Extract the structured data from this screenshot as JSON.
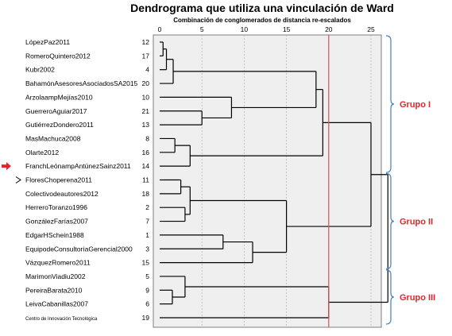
{
  "chart_data": {
    "type": "dendrogram",
    "title": "Dendrograma que utiliza una vinculación de Ward",
    "subtitle": "Combinación de conglomerados de distancia re-escalados",
    "xlim": [
      0,
      25
    ],
    "ticks": [
      0,
      5,
      10,
      15,
      20,
      25
    ],
    "cut_line": 20,
    "cut_line_color": "#e05050",
    "leaves": [
      {
        "label": "LópezPaz2011",
        "id": "12"
      },
      {
        "label": "RomeroQuintero2012",
        "id": "17"
      },
      {
        "label": "Kubr2002",
        "id": "4"
      },
      {
        "label": "BahamónAsesoresAsociadosSA2015",
        "id": "20"
      },
      {
        "label": "ArzolaampMejías2010",
        "id": "10"
      },
      {
        "label": "GuerreroAguiar2017",
        "id": "21"
      },
      {
        "label": "GutiérrezDondero2011",
        "id": "13"
      },
      {
        "label": "MasMachuca2008",
        "id": "8"
      },
      {
        "label": "Olarte2012",
        "id": "16"
      },
      {
        "label": "FranchLeónampAntúnezSainz2011",
        "id": "14"
      },
      {
        "label": "FloresChoperena2011",
        "id": "11"
      },
      {
        "label": "Colectivodeautores2012",
        "id": "18"
      },
      {
        "label": "HerreroToranzo1996",
        "id": "2"
      },
      {
        "label": "GonzálezFarías2007",
        "id": "7"
      },
      {
        "label": "EdgarHSchein1988",
        "id": "1"
      },
      {
        "label": "EquipodeConsultoríaGerencial2000",
        "id": "3"
      },
      {
        "label": "VázquezRomero2011",
        "id": "15"
      },
      {
        "label": "MarimonViadiu2002",
        "id": "5"
      },
      {
        "label": "PereiraBarata2010",
        "id": "9"
      },
      {
        "label": "LeivaCabanillas2007",
        "id": "6"
      },
      {
        "label": "Centro de Innovación Tecnológica",
        "id": "19",
        "small": true
      }
    ],
    "merges": [
      {
        "a": {
          "leaf": 0
        },
        "b": {
          "leaf": 1
        },
        "height": 0.4
      },
      {
        "a": {
          "node": 0
        },
        "b": {
          "leaf": 2
        },
        "height": 0.8
      },
      {
        "a": {
          "node": 1
        },
        "b": {
          "leaf": 3
        },
        "height": 1.6
      },
      {
        "a": {
          "leaf": 5
        },
        "b": {
          "leaf": 6
        },
        "height": 5.0
      },
      {
        "a": {
          "leaf": 4
        },
        "b": {
          "node": 3
        },
        "height": 8.5
      },
      {
        "a": {
          "node": 2
        },
        "b": {
          "node": 4
        },
        "height": 18.5
      },
      {
        "a": {
          "leaf": 7
        },
        "b": {
          "leaf": 8
        },
        "height": 1.8
      },
      {
        "a": {
          "node": 6
        },
        "b": {
          "leaf": 9
        },
        "height": 3.6
      },
      {
        "a": {
          "node": 5
        },
        "b": {
          "node": 7
        },
        "height": 19.3
      },
      {
        "a": {
          "leaf": 10
        },
        "b": {
          "leaf": 11
        },
        "height": 2.5
      },
      {
        "a": {
          "leaf": 12
        },
        "b": {
          "leaf": 13
        },
        "height": 3.0
      },
      {
        "a": {
          "node": 9
        },
        "b": {
          "node": 10
        },
        "height": 3.6
      },
      {
        "a": {
          "leaf": 14
        },
        "b": {
          "leaf": 15
        },
        "height": 7.5
      },
      {
        "a": {
          "node": 12
        },
        "b": {
          "leaf": 16
        },
        "height": 11.0
      },
      {
        "a": {
          "node": 11
        },
        "b": {
          "node": 13
        },
        "height": 15.0
      },
      {
        "a": {
          "node": 8
        },
        "b": {
          "node": 14
        },
        "height": 25.0
      },
      {
        "a": {
          "leaf": 18
        },
        "b": {
          "leaf": 19
        },
        "height": 1.5
      },
      {
        "a": {
          "leaf": 17
        },
        "b": {
          "node": 16
        },
        "height": 3.0
      },
      {
        "a": {
          "node": 17
        },
        "b": {
          "leaf": 20
        },
        "height": 20.0
      },
      {
        "a": {
          "node": 15
        },
        "b": {
          "node": 18
        },
        "height": 27.0
      }
    ],
    "groups": [
      {
        "label": "Grupo I",
        "from_leaf": 0,
        "to_leaf": 9,
        "color": "#e8232a",
        "bracket_color": "#4f86c6"
      },
      {
        "label": "Grupo II",
        "from_leaf": 10,
        "to_leaf": 16,
        "color": "#e8232a",
        "bracket_color": "#4f86c6"
      },
      {
        "label": "Grupo III",
        "from_leaf": 17,
        "to_leaf": 20,
        "color": "#e8232a",
        "bracket_color": "#4f86c6"
      }
    ],
    "markers": {
      "red_arrow_leaf": 9,
      "red_arrow_color": "#e8232a",
      "cursor_leaf": 10
    }
  }
}
